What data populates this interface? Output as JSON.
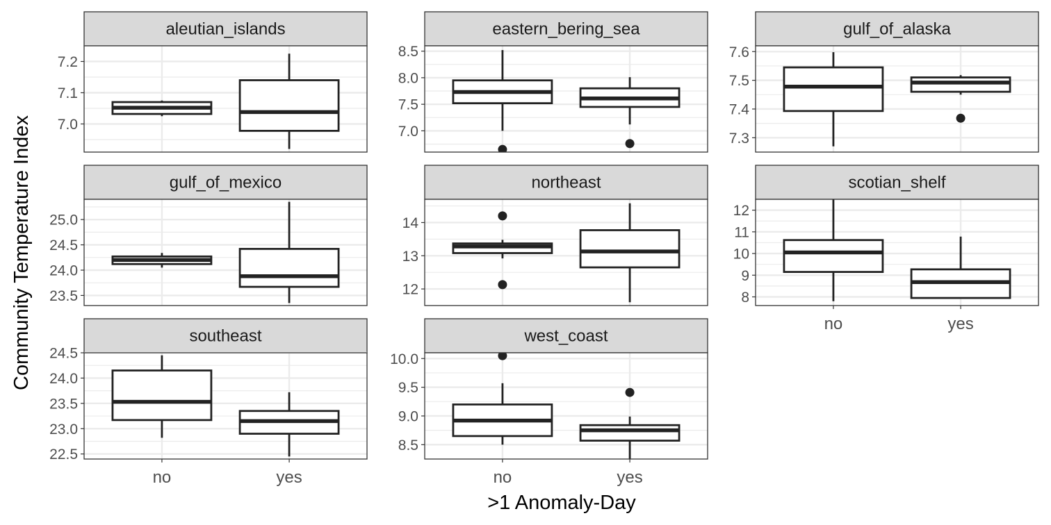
{
  "chart_data": {
    "type": "box",
    "xlabel": ">1 Anomaly-Day",
    "ylabel": "Community Temperature Index",
    "categories": [
      "no",
      "yes"
    ],
    "grid": true,
    "facets": [
      {
        "name": "aleutian_islands",
        "ylim": [
          6.91,
          7.25
        ],
        "yticks": [
          7.0,
          7.1,
          7.2
        ],
        "boxes": [
          {
            "group": "no",
            "lower": 7.025,
            "q1": 7.032,
            "median": 7.052,
            "q3": 7.07,
            "upper": 7.075,
            "outliers": []
          },
          {
            "group": "yes",
            "lower": 6.92,
            "q1": 6.978,
            "median": 7.038,
            "q3": 7.14,
            "upper": 7.225,
            "outliers": []
          }
        ]
      },
      {
        "name": "eastern_bering_sea",
        "ylim": [
          6.6,
          8.6
        ],
        "yticks": [
          7.0,
          7.5,
          8.0,
          8.5
        ],
        "boxes": [
          {
            "group": "no",
            "lower": 7.0,
            "q1": 7.52,
            "median": 7.73,
            "q3": 7.95,
            "upper": 8.52,
            "outliers": [
              6.65
            ]
          },
          {
            "group": "yes",
            "lower": 7.12,
            "q1": 7.45,
            "median": 7.61,
            "q3": 7.8,
            "upper": 8.01,
            "outliers": [
              6.76
            ]
          }
        ]
      },
      {
        "name": "gulf_of_alaska",
        "ylim": [
          7.25,
          7.62
        ],
        "yticks": [
          7.3,
          7.4,
          7.5,
          7.6
        ],
        "boxes": [
          {
            "group": "no",
            "lower": 7.27,
            "q1": 7.393,
            "median": 7.478,
            "q3": 7.545,
            "upper": 7.598,
            "outliers": []
          },
          {
            "group": "yes",
            "lower": 7.45,
            "q1": 7.46,
            "median": 7.492,
            "q3": 7.51,
            "upper": 7.518,
            "outliers": [
              7.368
            ]
          }
        ]
      },
      {
        "name": "gulf_of_mexico",
        "ylim": [
          23.3,
          25.4
        ],
        "yticks": [
          23.5,
          24.0,
          24.5,
          25.0
        ],
        "boxes": [
          {
            "group": "no",
            "lower": 24.05,
            "q1": 24.12,
            "median": 24.2,
            "q3": 24.27,
            "upper": 24.34,
            "outliers": []
          },
          {
            "group": "yes",
            "lower": 23.35,
            "q1": 23.67,
            "median": 23.88,
            "q3": 24.42,
            "upper": 25.35,
            "outliers": []
          }
        ]
      },
      {
        "name": "northeast",
        "ylim": [
          11.5,
          14.7
        ],
        "yticks": [
          12,
          13,
          14
        ],
        "boxes": [
          {
            "group": "no",
            "lower": 12.92,
            "q1": 13.08,
            "median": 13.28,
            "q3": 13.37,
            "upper": 13.48,
            "outliers": [
              14.2,
              12.13
            ]
          },
          {
            "group": "yes",
            "lower": 11.6,
            "q1": 12.65,
            "median": 13.13,
            "q3": 13.77,
            "upper": 14.58,
            "outliers": []
          }
        ]
      },
      {
        "name": "scotian_shelf",
        "ylim": [
          7.6,
          12.5
        ],
        "yticks": [
          8,
          9,
          10,
          11,
          12
        ],
        "boxes": [
          {
            "group": "no",
            "lower": 7.8,
            "q1": 9.15,
            "median": 10.05,
            "q3": 10.62,
            "upper": 12.5,
            "outliers": []
          },
          {
            "group": "yes",
            "lower": 7.95,
            "q1": 7.95,
            "median": 8.68,
            "q3": 9.27,
            "upper": 10.78,
            "outliers": []
          }
        ]
      },
      {
        "name": "southeast",
        "ylim": [
          22.4,
          24.5
        ],
        "yticks": [
          22.5,
          23.0,
          23.5,
          24.0,
          24.5
        ],
        "boxes": [
          {
            "group": "no",
            "lower": 22.82,
            "q1": 23.17,
            "median": 23.53,
            "q3": 24.15,
            "upper": 24.45,
            "outliers": []
          },
          {
            "group": "yes",
            "lower": 22.45,
            "q1": 22.9,
            "median": 23.15,
            "q3": 23.35,
            "upper": 23.72,
            "outliers": []
          }
        ]
      },
      {
        "name": "west_coast",
        "ylim": [
          8.25,
          10.1
        ],
        "yticks": [
          8.5,
          9.0,
          9.5,
          10.0
        ],
        "boxes": [
          {
            "group": "no",
            "lower": 8.5,
            "q1": 8.65,
            "median": 8.92,
            "q3": 9.2,
            "upper": 9.57,
            "outliers": [
              10.05
            ]
          },
          {
            "group": "yes",
            "lower": 8.25,
            "q1": 8.57,
            "median": 8.75,
            "q3": 8.84,
            "upper": 8.99,
            "outliers": [
              9.41
            ]
          }
        ]
      }
    ]
  }
}
